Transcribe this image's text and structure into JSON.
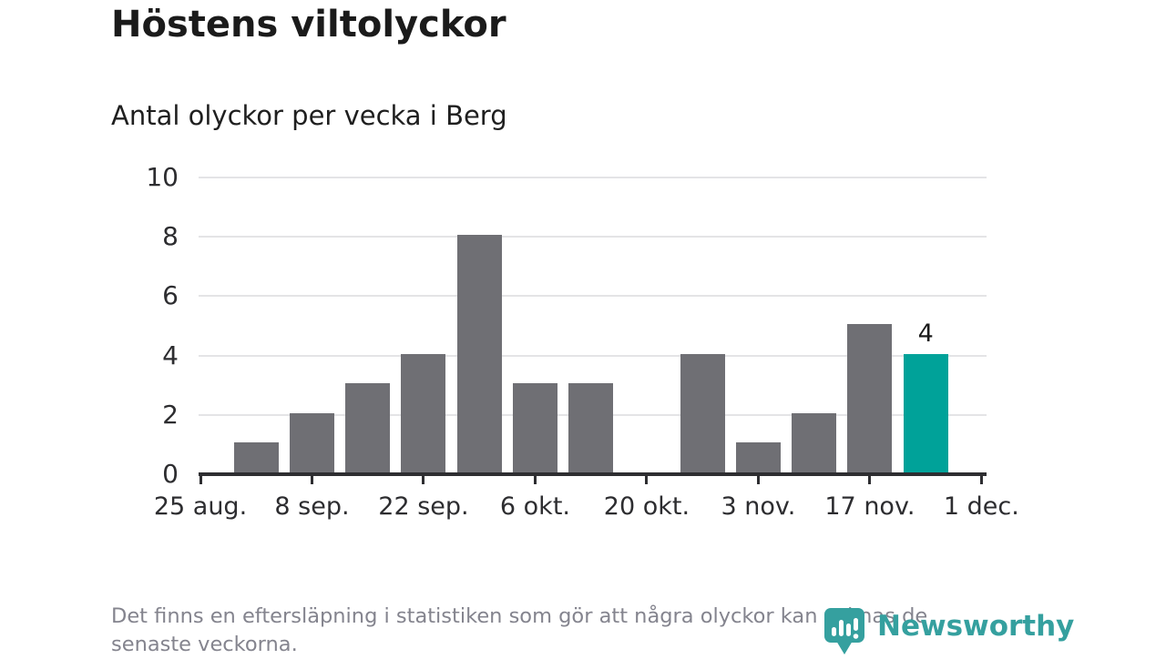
{
  "page": {
    "title": "Höstens viltolyckor",
    "subtitle": "Antal olyckor per vecka i Berg"
  },
  "chart_data": {
    "type": "bar",
    "title": "Höstens viltolyckor",
    "subtitle": "Antal olyckor per vecka i Berg",
    "categories": [
      "1 sep.",
      "8 sep.",
      "15 sep.",
      "22 sep.",
      "29 sep.",
      "6 okt.",
      "13 okt.",
      "20 okt.",
      "27 okt.",
      "3 nov.",
      "10 nov.",
      "17 nov.",
      "24 nov."
    ],
    "values": [
      1,
      2,
      3,
      4,
      8,
      3,
      3,
      0,
      4,
      1,
      2,
      5,
      4
    ],
    "x_tick_labels": [
      "25 aug.",
      "8 sep.",
      "22 sep.",
      "6 okt.",
      "20 okt.",
      "3 nov.",
      "17 nov.",
      "1 dec."
    ],
    "x_total_weeks": 14,
    "xlabel": "",
    "ylabel": "",
    "ylim": [
      0,
      10
    ],
    "y_ticks": [
      0,
      2,
      4,
      6,
      8,
      10
    ],
    "grid": true,
    "legend": false,
    "highlight_index": 12,
    "highlight_value_label": "4",
    "bar_color": "#6f6f74",
    "highlight_color": "#00a299",
    "axis_color": "#2e2e31",
    "grid_color": "#e4e4e6"
  },
  "footer": {
    "line1": "Det finns en eftersläpning i statistiken som gör att några olyckor kan saknas de",
    "line2": "senaste veckorna."
  },
  "brand": {
    "name": "Newsworthy",
    "icon": "newsworthy-chart-bubble-icon",
    "color": "#35a09f"
  }
}
